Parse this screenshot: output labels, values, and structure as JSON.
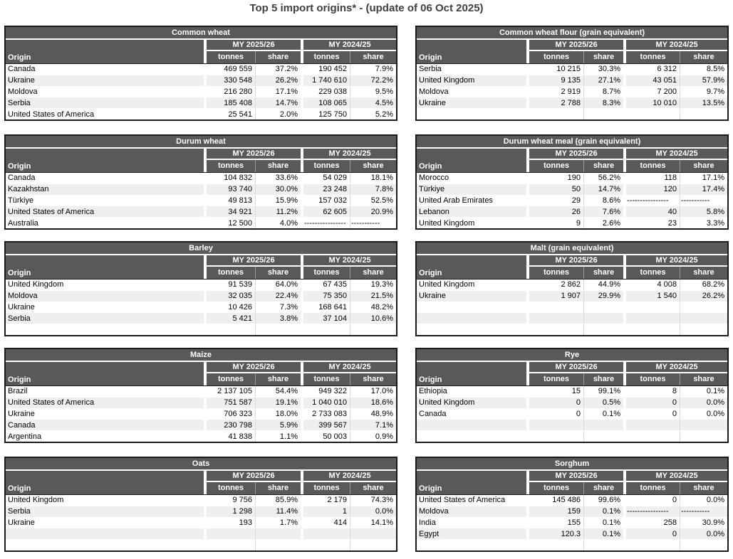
{
  "page_title": "Top 5 import origins* - (update of 06 Oct 2025)",
  "headers": {
    "origin": "Origin",
    "year1": "MY 2025/26",
    "year2": "MY 2024/25",
    "tonnes": "tonnes",
    "share": "share"
  },
  "colors": {
    "header_bg": "#595959",
    "stripe_bg": "#efefef",
    "divider_color": "#d9d9d9",
    "border_color": "#1a1a1a",
    "title_color": "#404040"
  },
  "left_tables": [
    {
      "title": "Common wheat",
      "rows": [
        {
          "origin": "Canada",
          "t1": "469 559",
          "s1": "37.2%",
          "t2": "190 452",
          "s2": "7.9%"
        },
        {
          "origin": "Ukraine",
          "t1": "330 548",
          "s1": "26.2%",
          "t2": "1 740 610",
          "s2": "72.2%"
        },
        {
          "origin": "Moldova",
          "t1": "216 280",
          "s1": "17.1%",
          "t2": "229 038",
          "s2": "9.5%"
        },
        {
          "origin": "Serbia",
          "t1": "185 408",
          "s1": "14.7%",
          "t2": "108 065",
          "s2": "4.5%"
        },
        {
          "origin": "United States of America",
          "t1": "25 541",
          "s1": "2.0%",
          "t2": "125 750",
          "s2": "5.2%"
        }
      ]
    },
    {
      "title": "Durum wheat",
      "rows": [
        {
          "origin": "Canada",
          "t1": "104 832",
          "s1": "33.6%",
          "t2": "54 029",
          "s2": "18.1%"
        },
        {
          "origin": "Kazakhstan",
          "t1": "93 740",
          "s1": "30.0%",
          "t2": "23 248",
          "s2": "7.8%"
        },
        {
          "origin": "Türkiye",
          "t1": "49 813",
          "s1": "15.9%",
          "t2": "157 032",
          "s2": "52.5%"
        },
        {
          "origin": "United States of America",
          "t1": "34 921",
          "s1": "11.2%",
          "t2": "62 605",
          "s2": "20.9%"
        },
        {
          "origin": "Australia",
          "t1": "12 500",
          "s1": "4.0%",
          "t2": "----------------",
          "s2": "-----------"
        }
      ]
    },
    {
      "title": "Barley",
      "rows": [
        {
          "origin": "United Kingdom",
          "t1": "91 539",
          "s1": "64.0%",
          "t2": "67 435",
          "s2": "19.3%"
        },
        {
          "origin": "Moldova",
          "t1": "32 035",
          "s1": "22.4%",
          "t2": "75 350",
          "s2": "21.5%"
        },
        {
          "origin": "Ukraine",
          "t1": "10 426",
          "s1": "7.3%",
          "t2": "168 641",
          "s2": "48.2%"
        },
        {
          "origin": "Serbia",
          "t1": "5 421",
          "s1": "3.8%",
          "t2": "37 104",
          "s2": "10.6%"
        }
      ]
    },
    {
      "title": "Maize",
      "rows": [
        {
          "origin": "Brazil",
          "t1": "2 137 105",
          "s1": "54.4%",
          "t2": "949 322",
          "s2": "17.0%"
        },
        {
          "origin": "United States of America",
          "t1": "751 587",
          "s1": "19.1%",
          "t2": "1 040 010",
          "s2": "18.6%"
        },
        {
          "origin": "Ukraine",
          "t1": "706 323",
          "s1": "18.0%",
          "t2": "2 733 083",
          "s2": "48.9%"
        },
        {
          "origin": "Canada",
          "t1": "230 798",
          "s1": "5.9%",
          "t2": "399 567",
          "s2": "7.1%"
        },
        {
          "origin": "Argentina",
          "t1": "41 838",
          "s1": "1.1%",
          "t2": "50 003",
          "s2": "0.9%"
        }
      ]
    },
    {
      "title": "Oats",
      "rows": [
        {
          "origin": "United Kingdom",
          "t1": "9 756",
          "s1": "85.9%",
          "t2": "2 179",
          "s2": "74.3%"
        },
        {
          "origin": "Serbia",
          "t1": "1 298",
          "s1": "11.4%",
          "t2": "1",
          "s2": "0.0%"
        },
        {
          "origin": "Ukraine",
          "t1": "193",
          "s1": "1.7%",
          "t2": "414",
          "s2": "14.1%"
        }
      ]
    }
  ],
  "right_tables": [
    {
      "title": "Common wheat flour (grain equivalent)",
      "rows": [
        {
          "origin": "Serbia",
          "t1": "10 215",
          "s1": "30.3%",
          "t2": "6 312",
          "s2": "8.5%"
        },
        {
          "origin": "United Kingdom",
          "t1": "9 135",
          "s1": "27.1%",
          "t2": "43 051",
          "s2": "57.9%"
        },
        {
          "origin": "Moldova",
          "t1": "2 919",
          "s1": "8.7%",
          "t2": "7 200",
          "s2": "9.7%"
        },
        {
          "origin": "Ukraine",
          "t1": "2 788",
          "s1": "8.3%",
          "t2": "10 010",
          "s2": "13.5%"
        }
      ]
    },
    {
      "title": "Durum wheat meal (grain equivalent)",
      "rows": [
        {
          "origin": "Morocco",
          "t1": "190",
          "s1": "56.2%",
          "t2": "118",
          "s2": "17.1%"
        },
        {
          "origin": "Türkiye",
          "t1": "50",
          "s1": "14.7%",
          "t2": "120",
          "s2": "17.4%"
        },
        {
          "origin": "United Arab Emirates",
          "t1": "29",
          "s1": "8.6%",
          "t2": "----------------",
          "s2": "-----------"
        },
        {
          "origin": "Lebanon",
          "t1": "26",
          "s1": "7.6%",
          "t2": "40",
          "s2": "5.8%"
        },
        {
          "origin": "United Kingdom",
          "t1": "9",
          "s1": "2.6%",
          "t2": "23",
          "s2": "3.3%"
        }
      ]
    },
    {
      "title": "Malt (grain equivalent)",
      "rows": [
        {
          "origin": "United Kingdom",
          "t1": "2 862",
          "s1": "44.9%",
          "t2": "4 008",
          "s2": "68.2%"
        },
        {
          "origin": "Ukraine",
          "t1": "1 907",
          "s1": "29.9%",
          "t2": "1 540",
          "s2": "26.2%"
        }
      ]
    },
    {
      "title": "Rye",
      "rows": [
        {
          "origin": "Ethiopia",
          "t1": "15",
          "s1": "99.1%",
          "t2": "8",
          "s2": "0.1%"
        },
        {
          "origin": "United Kingdom",
          "t1": "0",
          "s1": "0.5%",
          "t2": "0",
          "s2": "0.0%"
        },
        {
          "origin": "Canada",
          "t1": "0",
          "s1": "0.1%",
          "t2": "0",
          "s2": "0.0%"
        }
      ]
    },
    {
      "title": "Sorghum",
      "rows": [
        {
          "origin": "United States of America",
          "t1": "145 486",
          "s1": "99.6%",
          "t2": "0",
          "s2": "0.0%"
        },
        {
          "origin": "Moldova",
          "t1": "159",
          "s1": "0.1%",
          "t2": "----------------",
          "s2": "-----------"
        },
        {
          "origin": "India",
          "t1": "155",
          "s1": "0.1%",
          "t2": "258",
          "s2": "30.9%"
        },
        {
          "origin": "Egypt",
          "t1": "120.3",
          "s1": "0.1%",
          "t2": "0",
          "s2": "0.0%"
        }
      ]
    }
  ]
}
